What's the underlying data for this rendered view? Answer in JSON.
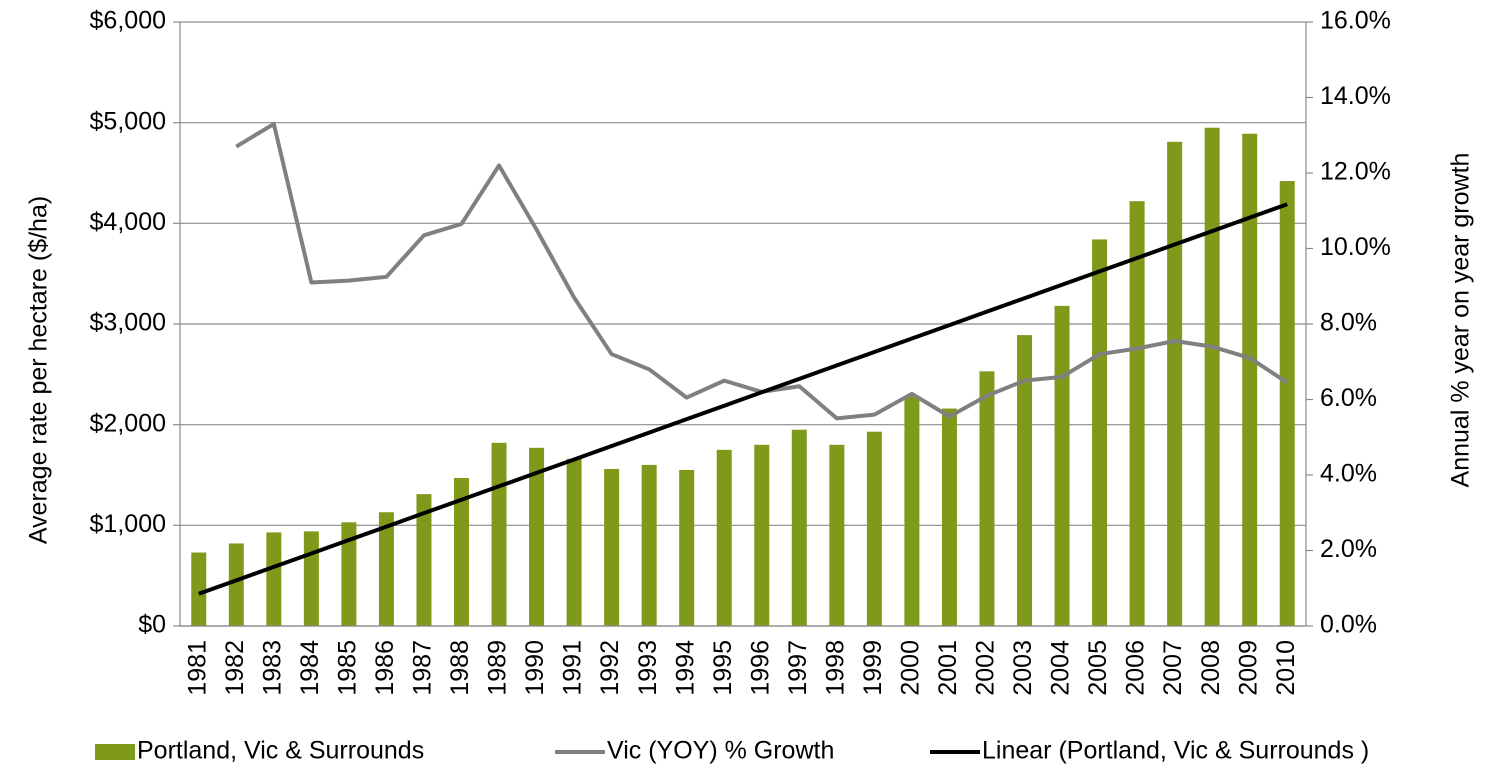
{
  "chart_data": {
    "type": "bar",
    "categories": [
      "1981",
      "1982",
      "1983",
      "1984",
      "1985",
      "1986",
      "1987",
      "1988",
      "1989",
      "1990",
      "1991",
      "1992",
      "1993",
      "1994",
      "1995",
      "1996",
      "1997",
      "1998",
      "1999",
      "2000",
      "2001",
      "2002",
      "2003",
      "2004",
      "2005",
      "2006",
      "2007",
      "2008",
      "2009",
      "2010"
    ],
    "series": [
      {
        "name": "Portland, Vic & Surrounds",
        "type": "bar",
        "color": "#7f9a1a",
        "values": [
          730,
          820,
          930,
          940,
          1030,
          1130,
          1310,
          1470,
          1820,
          1770,
          1660,
          1560,
          1600,
          1550,
          1750,
          1800,
          1950,
          1800,
          1930,
          2280,
          2160,
          2530,
          2890,
          3180,
          3840,
          4220,
          4810,
          4950,
          4890,
          4420
        ]
      },
      {
        "name": "Vic (YOY) % Growth",
        "type": "line",
        "color": "#808080",
        "axis": "y2",
        "values": [
          null,
          12.7,
          13.3,
          9.1,
          9.15,
          9.25,
          10.35,
          10.65,
          12.2,
          10.5,
          8.7,
          7.2,
          6.8,
          6.05,
          6.5,
          6.2,
          6.35,
          5.5,
          5.6,
          6.15,
          5.55,
          6.1,
          6.5,
          6.6,
          7.2,
          7.35,
          7.55,
          7.4,
          7.1,
          6.45
        ]
      },
      {
        "name": "Linear (Portland, Vic & Surrounds )",
        "type": "line",
        "color": "#000000",
        "values": [
          320,
          453,
          587,
          720,
          854,
          987,
          1121,
          1254,
          1388,
          1521,
          1654,
          1788,
          1921,
          2055,
          2188,
          2322,
          2455,
          2589,
          2722,
          2856,
          2989,
          3123,
          3256,
          3390,
          3523,
          3656,
          3790,
          3923,
          4057,
          4190
        ]
      }
    ],
    "ylabel": "Average rate per hectare ($/ha)",
    "y2label": "Annual  % year on year growth",
    "ylim": [
      0,
      6000
    ],
    "yticks": [
      {
        "value": 0,
        "label": "$0"
      },
      {
        "value": 1000,
        "label": "$1,000"
      },
      {
        "value": 2000,
        "label": "$2,000"
      },
      {
        "value": 3000,
        "label": "$3,000"
      },
      {
        "value": 4000,
        "label": "$4,000"
      },
      {
        "value": 5000,
        "label": "$5,000"
      },
      {
        "value": 6000,
        "label": "$6,000"
      }
    ],
    "y2lim": [
      0,
      16
    ],
    "y2ticks": [
      {
        "value": 0,
        "label": "0.0%"
      },
      {
        "value": 2,
        "label": "2.0%"
      },
      {
        "value": 4,
        "label": "4.0%"
      },
      {
        "value": 6,
        "label": "6.0%"
      },
      {
        "value": 8,
        "label": "8.0%"
      },
      {
        "value": 10,
        "label": "10.0%"
      },
      {
        "value": 12,
        "label": "12.0%"
      },
      {
        "value": 14,
        "label": "14.0%"
      },
      {
        "value": 16,
        "label": "16.0%"
      }
    ],
    "grid": true,
    "legend": "bottom"
  }
}
